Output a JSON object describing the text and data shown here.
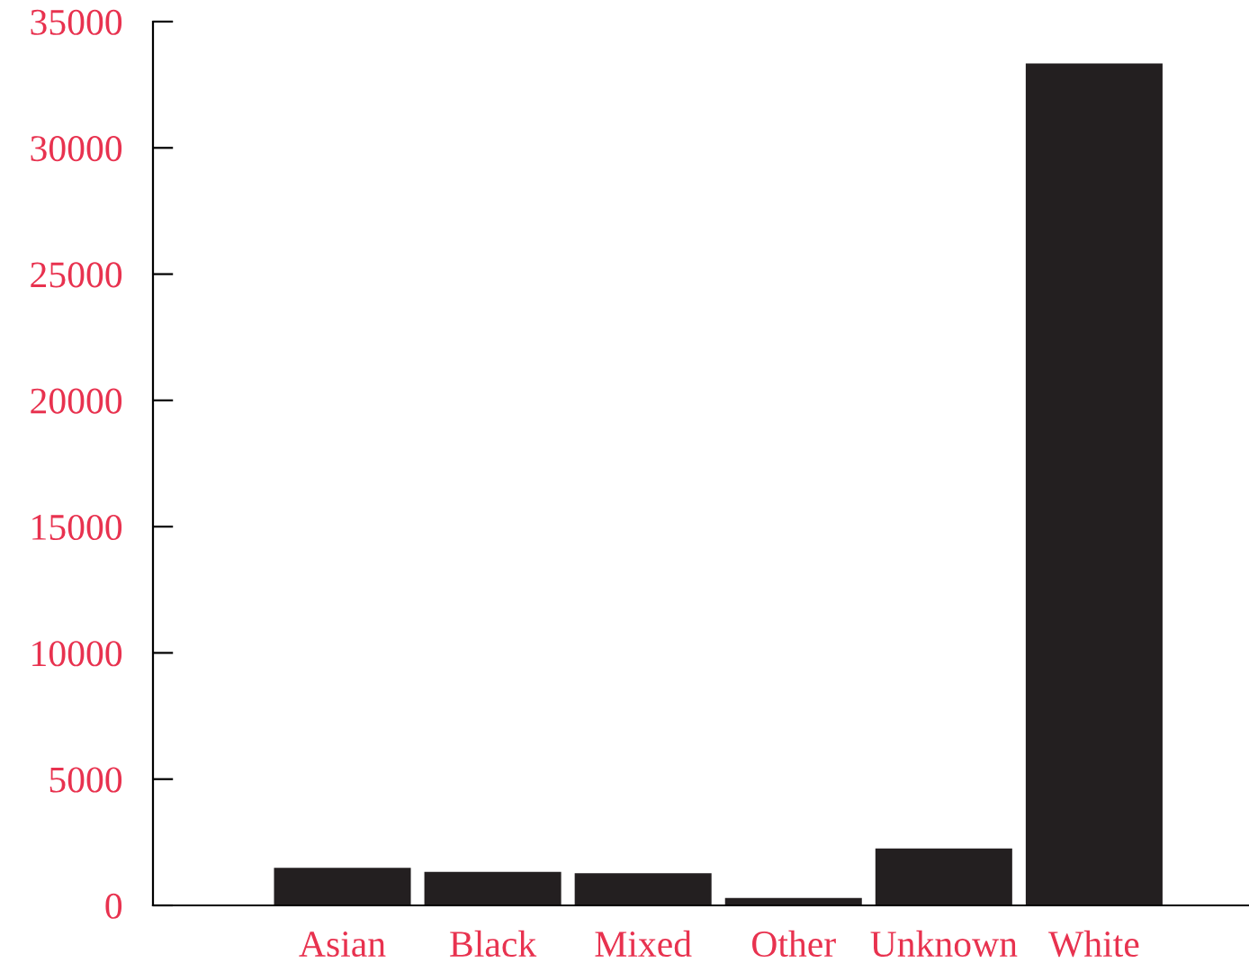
{
  "chart_data": {
    "type": "bar",
    "categories": [
      "Asian",
      "Black",
      "Mixed",
      "Other",
      "Unknown",
      "White"
    ],
    "values": [
      1490,
      1330,
      1270,
      290,
      2250,
      33340
    ],
    "color": "#231f20",
    "ylim": [
      0,
      35000
    ],
    "yticks": [
      0,
      5000,
      10000,
      15000,
      20000,
      25000,
      30000,
      35000
    ],
    "grid": false,
    "legend": false
  }
}
